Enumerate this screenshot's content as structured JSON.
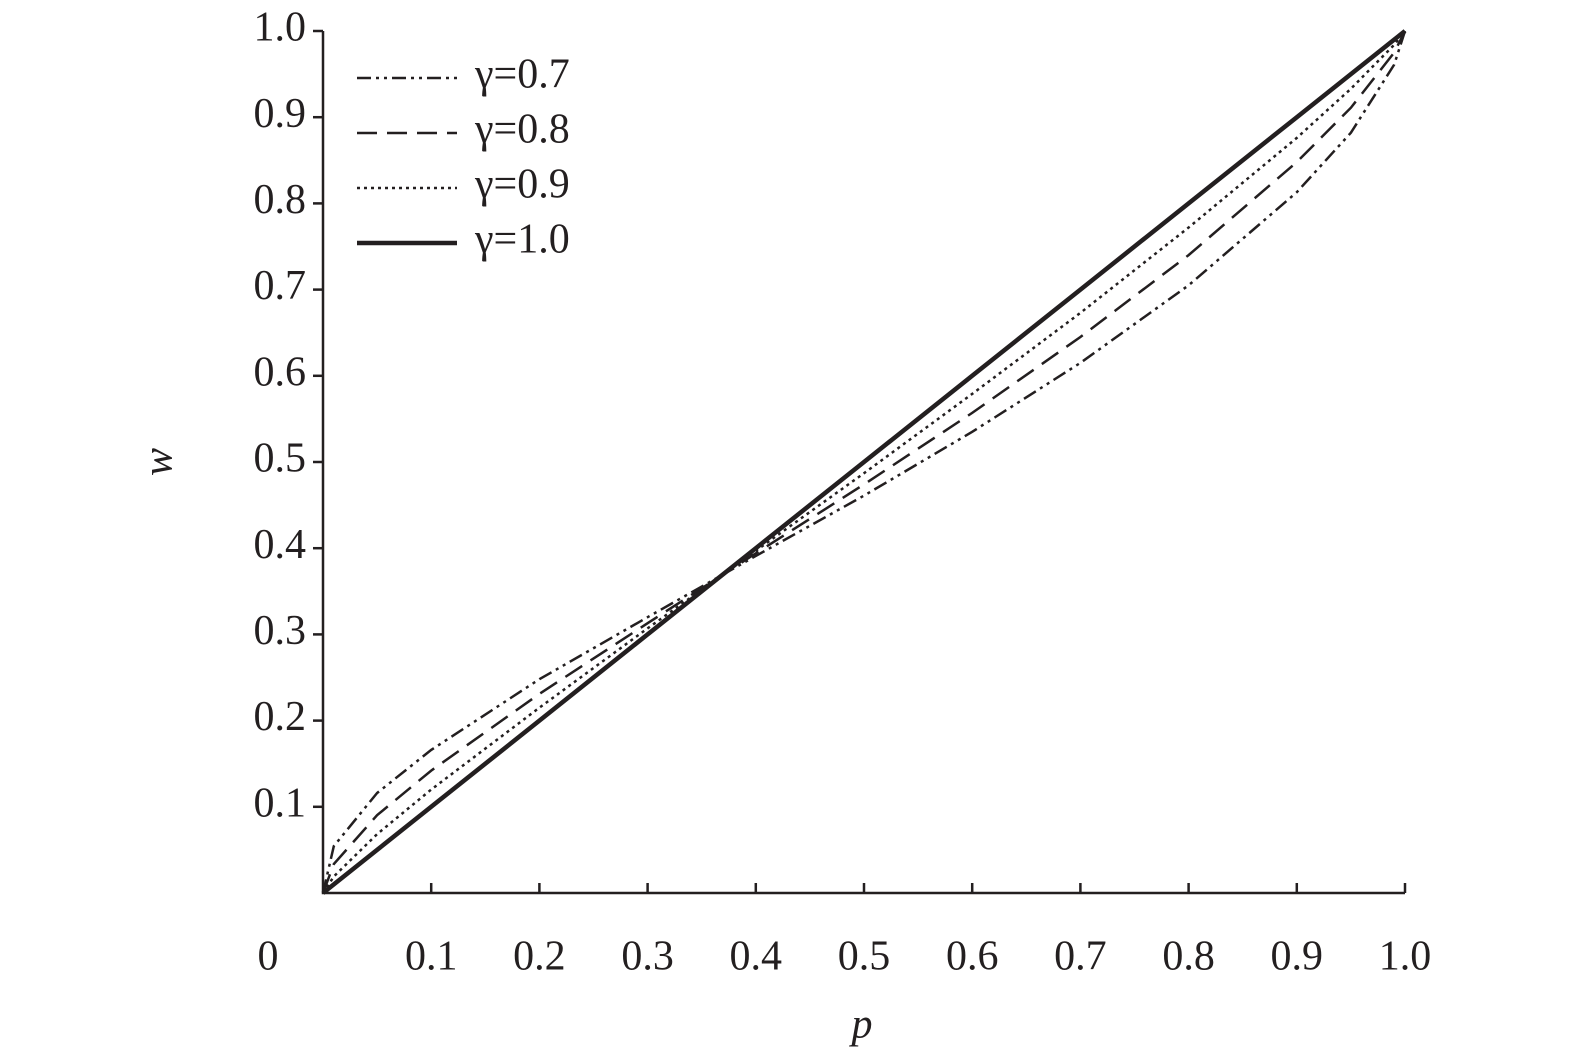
{
  "chart_data": {
    "type": "line",
    "x_label": "p",
    "y_label": "w",
    "origin_label": "0",
    "x": [
      0,
      0.01,
      0.05,
      0.1,
      0.2,
      0.3,
      0.4,
      0.5,
      0.6,
      0.7,
      0.8,
      0.9,
      0.95,
      0.99,
      1.0
    ],
    "series": [
      {
        "name": "γ=0.7",
        "color": "#231f20",
        "dash": "dashdotdot",
        "values": [
          0,
          0.0544,
          0.116,
          0.166,
          0.248,
          0.32,
          0.391,
          0.461,
          0.535,
          0.615,
          0.705,
          0.813,
          0.882,
          0.961,
          1.0
        ]
      },
      {
        "name": "γ=0.8",
        "color": "#231f20",
        "dash": "dashed",
        "values": [
          0,
          0.0336,
          0.0903,
          0.142,
          0.231,
          0.313,
          0.394,
          0.474,
          0.557,
          0.645,
          0.74,
          0.848,
          0.911,
          0.975,
          1.0
        ]
      },
      {
        "name": "γ=0.9",
        "color": "#231f20",
        "dash": "dotted",
        "values": [
          0,
          0.0192,
          0.0683,
          0.12,
          0.215,
          0.307,
          0.397,
          0.487,
          0.579,
          0.673,
          0.772,
          0.876,
          0.933,
          0.984,
          1.0
        ]
      },
      {
        "name": "γ=1.0",
        "color": "#231f20",
        "dash": "solid",
        "values": [
          0,
          0.01,
          0.05,
          0.1,
          0.2,
          0.3,
          0.4,
          0.5,
          0.6,
          0.7,
          0.8,
          0.9,
          0.95,
          0.99,
          1.0
        ]
      }
    ],
    "xlim": [
      0,
      1
    ],
    "ylim": [
      0,
      1
    ],
    "xticks": [
      0.1,
      0.2,
      0.3,
      0.4,
      0.5,
      0.6,
      0.7,
      0.8,
      0.9,
      {
        "value": 1,
        "label": "1.0"
      }
    ],
    "yticks": [
      0.1,
      0.2,
      0.3,
      0.4,
      0.5,
      0.6,
      0.7,
      0.8,
      0.9,
      {
        "value": 1,
        "label": "1.0"
      }
    ],
    "legend": "top-left",
    "grid": false
  }
}
